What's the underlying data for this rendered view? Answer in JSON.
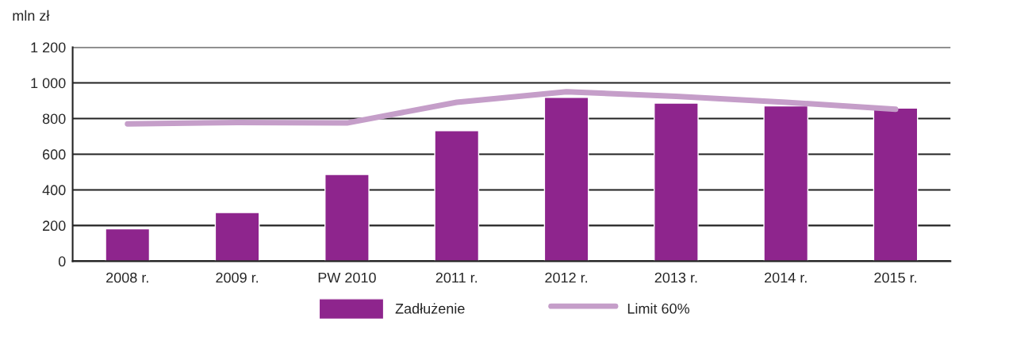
{
  "chart_data": {
    "type": "bar",
    "ylabel": "mln zł",
    "categories": [
      "2008 r.",
      "2009 r.",
      "PW 2010",
      "2011 r.",
      "2012 r.",
      "2013 r.",
      "2014 r.",
      "2015 r."
    ],
    "series": [
      {
        "name": "Zadłużenie",
        "color": "#8e258d",
        "values": [
          182,
          273,
          486,
          732,
          918,
          886,
          871,
          858
        ]
      },
      {
        "name": "Limit 60%",
        "type": "line",
        "color": "#c59ec9",
        "values": [
          770,
          778,
          775,
          891,
          950,
          924,
          891,
          852
        ]
      }
    ],
    "ylim": [
      0,
      1200
    ],
    "yticks": [
      0,
      {
        "value": 200,
        "label": "200"
      },
      {
        "value": 400,
        "label": "400"
      },
      {
        "value": 600,
        "label": "600"
      },
      {
        "value": 800,
        "label": "800"
      },
      {
        "value": 1000,
        "label": "1 000"
      },
      {
        "value": 1200,
        "label": "1 200"
      }
    ],
    "grid": "y",
    "legend": "bottom",
    "marker": "none",
    "line_style": "solid"
  }
}
